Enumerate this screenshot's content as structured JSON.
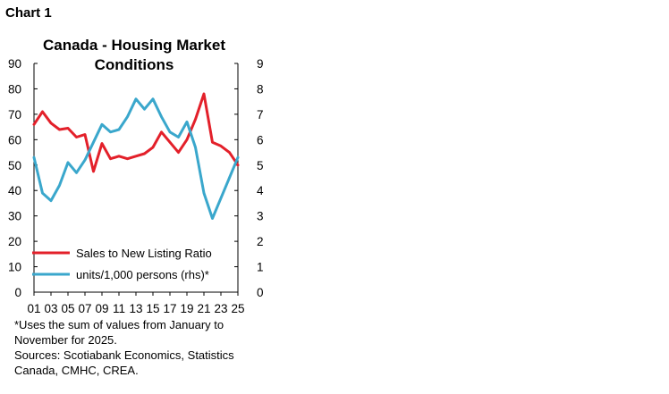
{
  "header": {
    "label": "Chart 1"
  },
  "chart_data": {
    "type": "line",
    "title": "Canada - Housing Market Conditions",
    "title_lines": [
      "Canada - Housing Market",
      "Conditions"
    ],
    "x": [
      2001,
      2002,
      2003,
      2004,
      2005,
      2006,
      2007,
      2008,
      2009,
      2010,
      2011,
      2012,
      2013,
      2014,
      2015,
      2016,
      2017,
      2018,
      2019,
      2020,
      2021,
      2022,
      2023,
      2024,
      2025
    ],
    "x_tick_labels": [
      "01",
      "03",
      "05",
      "07",
      "09",
      "11",
      "13",
      "15",
      "17",
      "19",
      "21",
      "23",
      "25"
    ],
    "y_left": {
      "ylim": [
        0,
        90
      ],
      "ticks": [
        "0",
        "10",
        "20",
        "30",
        "40",
        "50",
        "60",
        "70",
        "80",
        "90"
      ]
    },
    "y_right": {
      "ylim": [
        0,
        9
      ],
      "ticks": [
        "0",
        "1",
        "2",
        "3",
        "4",
        "5",
        "6",
        "7",
        "8",
        "9"
      ]
    },
    "grid": false,
    "legend_position": "bottom-left",
    "series": [
      {
        "name": "Sales to New Listing Ratio",
        "axis": "left",
        "color": "#e3202a",
        "values": [
          66,
          71,
          66.5,
          64,
          64.5,
          61,
          62,
          47.5,
          58.5,
          52.5,
          53.5,
          52.5,
          53.5,
          54.5,
          57,
          63,
          59,
          55,
          60,
          68,
          78,
          59,
          57.5,
          55,
          50
        ]
      },
      {
        "name": "units/1,000 persons (rhs)*",
        "axis": "right",
        "color": "#3aa7cc",
        "values": [
          5.3,
          3.9,
          3.6,
          4.2,
          5.1,
          4.7,
          5.2,
          5.9,
          6.6,
          6.3,
          6.4,
          6.9,
          7.6,
          7.2,
          7.6,
          6.9,
          6.3,
          6.1,
          6.7,
          5.7,
          3.9,
          2.9,
          3.7,
          4.5,
          5.3
        ]
      }
    ]
  },
  "notes": {
    "footnote": "*Uses the sum of values from January to November for 2025.",
    "sources": "Sources: Scotiabank Economics, Statistics Canada, CMHC, CREA."
  }
}
